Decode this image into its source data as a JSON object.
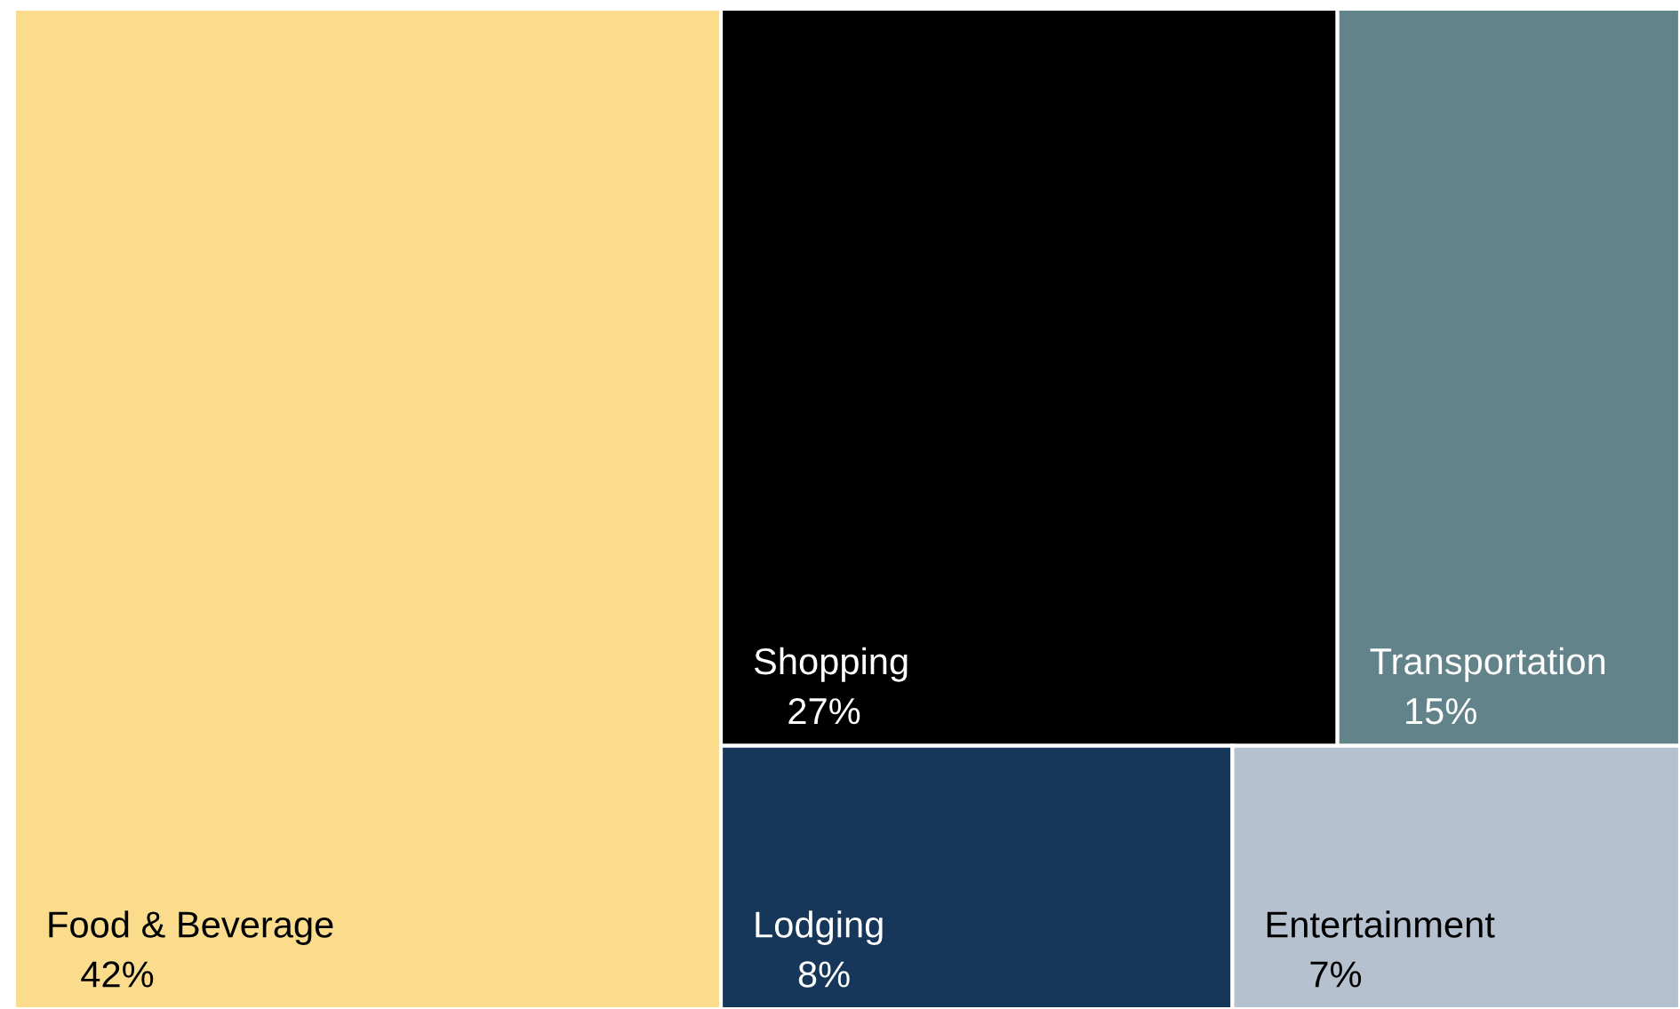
{
  "chart_data": {
    "type": "other",
    "categories": [
      "Food & Beverage",
      "Shopping",
      "Transportation",
      "Lodging",
      "Entertainment"
    ],
    "values": [
      42,
      27,
      15,
      8,
      7
    ],
    "value_labels": [
      "42%",
      "27%",
      "15%",
      "8%",
      "7%"
    ],
    "colors": [
      "#fadc8c",
      "#000000",
      "#63838a",
      "#16365a",
      "#b5c1cf"
    ]
  }
}
